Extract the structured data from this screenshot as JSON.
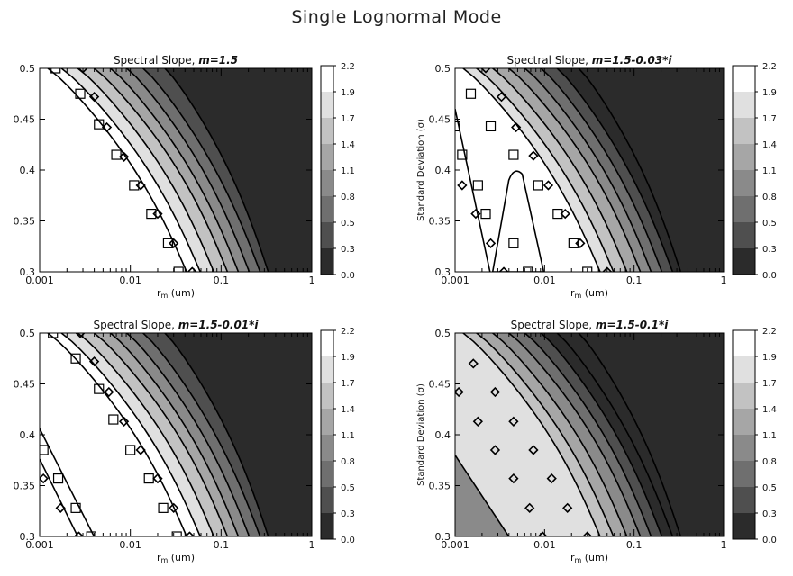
{
  "figure_title": "Single Lognormal Mode",
  "chart_data": [
    {
      "type": "contour",
      "title": "Spectral Slope, m=1.5",
      "title_prefix": "Spectral Slope, ",
      "title_m": "m=1.5",
      "xlabel": "r_m (um)",
      "ylabel": "",
      "xscale": "log",
      "xlim": [
        0.001,
        1
      ],
      "ylim": [
        0.3,
        0.5
      ],
      "xticks": [
        "0.001",
        "0.01",
        "0.1",
        "1"
      ],
      "yticks": [
        "0.3",
        "0.35",
        "0.4",
        "0.45",
        "0.5"
      ],
      "levels": [
        "2.2",
        "1.9",
        "1.7",
        "1.4",
        "1.1",
        "0.8",
        "0.5",
        "0.3",
        "0.0"
      ],
      "squares": [
        [
          0.0015,
          0.5
        ],
        [
          0.0028,
          0.475
        ],
        [
          0.0045,
          0.445
        ],
        [
          0.007,
          0.415
        ],
        [
          0.011,
          0.385
        ],
        [
          0.017,
          0.357
        ],
        [
          0.026,
          0.328
        ],
        [
          0.034,
          0.3
        ]
      ],
      "diamonds": [
        [
          0.003,
          0.5
        ],
        [
          0.004,
          0.472
        ],
        [
          0.0055,
          0.442
        ],
        [
          0.0085,
          0.413
        ],
        [
          0.013,
          0.385
        ],
        [
          0.02,
          0.357
        ],
        [
          0.03,
          0.328
        ],
        [
          0.048,
          0.3
        ]
      ]
    },
    {
      "type": "contour",
      "title": "Spectral Slope, m=1.5-0.03*i",
      "title_prefix": "Spectral Slope, ",
      "title_m": "m=1.5-0.03*i",
      "xlabel": "r_m (um)",
      "ylabel": "Standard Deviation (σ)",
      "xscale": "log",
      "xlim": [
        0.001,
        1
      ],
      "ylim": [
        0.3,
        0.5
      ],
      "xticks": [
        "0.001",
        "0.01",
        "0.1",
        "1"
      ],
      "yticks": [
        "0.3",
        "0.35",
        "0.4",
        "0.45",
        "0.5"
      ],
      "levels": [
        "2.2",
        "1.9",
        "1.7",
        "1.4",
        "1.1",
        "0.8",
        "0.5",
        "0.3",
        "0.0"
      ],
      "squares": [
        [
          0.0015,
          0.475
        ],
        [
          0.001,
          0.443
        ],
        [
          0.0025,
          0.443
        ],
        [
          0.0012,
          0.415
        ],
        [
          0.0045,
          0.415
        ],
        [
          0.0018,
          0.385
        ],
        [
          0.0085,
          0.385
        ],
        [
          0.0022,
          0.357
        ],
        [
          0.014,
          0.357
        ],
        [
          0.0045,
          0.328
        ],
        [
          0.021,
          0.328
        ],
        [
          0.0065,
          0.3
        ],
        [
          0.03,
          0.3
        ]
      ],
      "diamonds": [
        [
          0.0022,
          0.5
        ],
        [
          0.0033,
          0.472
        ],
        [
          0.0048,
          0.442
        ],
        [
          0.0075,
          0.414
        ],
        [
          0.011,
          0.385
        ],
        [
          0.0012,
          0.385
        ],
        [
          0.0017,
          0.357
        ],
        [
          0.0025,
          0.328
        ],
        [
          0.0035,
          0.3
        ],
        [
          0.017,
          0.357
        ],
        [
          0.025,
          0.328
        ],
        [
          0.05,
          0.3
        ]
      ]
    },
    {
      "type": "contour",
      "title": "Spectral Slope, m=1.5-0.01*i",
      "title_prefix": "Spectral Slope, ",
      "title_m": "m=1.5-0.01*i",
      "xlabel": "r_m (um)",
      "ylabel": "",
      "xscale": "log",
      "xlim": [
        0.001,
        1
      ],
      "ylim": [
        0.3,
        0.5
      ],
      "xticks": [
        "0.001",
        "0.01",
        "0.1",
        "1"
      ],
      "yticks": [
        "0.3",
        "0.35",
        "0.4",
        "0.45",
        "0.5"
      ],
      "levels": [
        "2.2",
        "1.9",
        "1.7",
        "1.4",
        "1.1",
        "0.8",
        "0.5",
        "0.3",
        "0.0"
      ],
      "squares": [
        [
          0.0014,
          0.5
        ],
        [
          0.0025,
          0.475
        ],
        [
          0.0045,
          0.445
        ],
        [
          0.0065,
          0.415
        ],
        [
          0.01,
          0.385
        ],
        [
          0.016,
          0.357
        ],
        [
          0.023,
          0.328
        ],
        [
          0.0325,
          0.3
        ],
        [
          0.0011,
          0.385
        ],
        [
          0.0016,
          0.357
        ],
        [
          0.0025,
          0.328
        ],
        [
          0.0037,
          0.3
        ]
      ],
      "diamonds": [
        [
          0.0028,
          0.5
        ],
        [
          0.004,
          0.472
        ],
        [
          0.0058,
          0.442
        ],
        [
          0.0085,
          0.413
        ],
        [
          0.013,
          0.385
        ],
        [
          0.02,
          0.357
        ],
        [
          0.03,
          0.328
        ],
        [
          0.045,
          0.3
        ],
        [
          0.0011,
          0.357
        ],
        [
          0.0017,
          0.328
        ],
        [
          0.0027,
          0.3
        ]
      ]
    },
    {
      "type": "contour",
      "title": "Spectral Slope, m=1.5-0.1*i",
      "title_prefix": "Spectral Slope, ",
      "title_m": "m=1.5-0.1*i",
      "xlabel": "r_m (um)",
      "ylabel": "Standard Deviation (σ)",
      "xscale": "log",
      "xlim": [
        0.001,
        1
      ],
      "ylim": [
        0.3,
        0.5
      ],
      "xticks": [
        "0.001",
        "0.01",
        "0.1",
        "1"
      ],
      "yticks": [
        "0.3",
        "0.35",
        "0.4",
        "0.45",
        "0.5"
      ],
      "levels": [
        "2.2",
        "1.9",
        "1.7",
        "1.4",
        "1.1",
        "0.8",
        "0.5",
        "0.3",
        "0.0"
      ],
      "squares": [],
      "diamonds": [
        [
          0.0016,
          0.47
        ],
        [
          0.0011,
          0.442
        ],
        [
          0.0028,
          0.442
        ],
        [
          0.0018,
          0.413
        ],
        [
          0.0045,
          0.413
        ],
        [
          0.0028,
          0.385
        ],
        [
          0.0075,
          0.385
        ],
        [
          0.0045,
          0.357
        ],
        [
          0.012,
          0.357
        ],
        [
          0.0068,
          0.328
        ],
        [
          0.018,
          0.328
        ],
        [
          0.0095,
          0.3
        ],
        [
          0.03,
          0.3
        ]
      ]
    }
  ]
}
